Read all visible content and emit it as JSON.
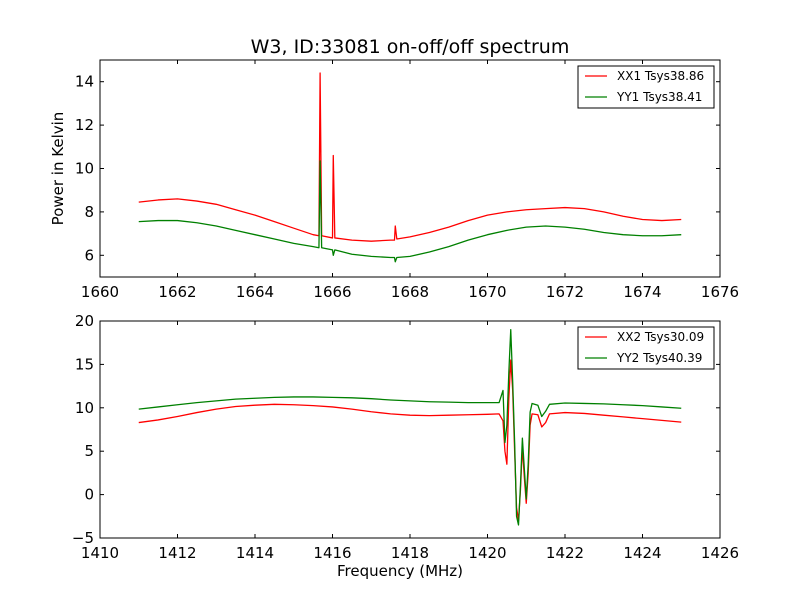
{
  "figure": {
    "title": "W3, ID:33081 on-off/off spectrum"
  },
  "chart_data": [
    {
      "type": "line",
      "title": "W3, ID:33081 on-off/off spectrum",
      "xlabel": "",
      "ylabel": "Power in Kelvin",
      "xlim": [
        1660,
        1676
      ],
      "ylim": [
        5,
        15
      ],
      "xticks": [
        1660,
        1662,
        1664,
        1666,
        1668,
        1670,
        1672,
        1674,
        1676
      ],
      "yticks": [
        6,
        8,
        10,
        12,
        14
      ],
      "grid": false,
      "legend_position": "top-right",
      "series": [
        {
          "name": "XX1 Tsys38.86",
          "color": "#ff0000",
          "points": [
            [
              1661.0,
              8.45
            ],
            [
              1661.5,
              8.55
            ],
            [
              1662.0,
              8.6
            ],
            [
              1662.5,
              8.5
            ],
            [
              1663.0,
              8.35
            ],
            [
              1663.5,
              8.1
            ],
            [
              1664.0,
              7.85
            ],
            [
              1664.5,
              7.55
            ],
            [
              1665.0,
              7.25
            ],
            [
              1665.5,
              6.95
            ],
            [
              1665.65,
              6.9
            ],
            [
              1665.68,
              14.4
            ],
            [
              1665.72,
              6.9
            ],
            [
              1666.0,
              6.8
            ],
            [
              1666.02,
              10.6
            ],
            [
              1666.06,
              6.8
            ],
            [
              1666.5,
              6.7
            ],
            [
              1667.0,
              6.65
            ],
            [
              1667.5,
              6.7
            ],
            [
              1667.6,
              6.7
            ],
            [
              1667.62,
              7.35
            ],
            [
              1667.66,
              6.75
            ],
            [
              1668.0,
              6.85
            ],
            [
              1668.5,
              7.05
            ],
            [
              1669.0,
              7.3
            ],
            [
              1669.5,
              7.6
            ],
            [
              1670.0,
              7.85
            ],
            [
              1670.5,
              8.0
            ],
            [
              1671.0,
              8.1
            ],
            [
              1671.5,
              8.15
            ],
            [
              1672.0,
              8.2
            ],
            [
              1672.5,
              8.15
            ],
            [
              1673.0,
              8.0
            ],
            [
              1673.5,
              7.8
            ],
            [
              1674.0,
              7.65
            ],
            [
              1674.5,
              7.6
            ],
            [
              1675.0,
              7.65
            ]
          ]
        },
        {
          "name": "YY1 Tsys38.41",
          "color": "#008000",
          "points": [
            [
              1661.0,
              7.55
            ],
            [
              1661.5,
              7.6
            ],
            [
              1662.0,
              7.6
            ],
            [
              1662.5,
              7.5
            ],
            [
              1663.0,
              7.35
            ],
            [
              1663.5,
              7.15
            ],
            [
              1664.0,
              6.95
            ],
            [
              1664.5,
              6.75
            ],
            [
              1665.0,
              6.55
            ],
            [
              1665.5,
              6.4
            ],
            [
              1665.65,
              6.35
            ],
            [
              1665.68,
              10.35
            ],
            [
              1665.72,
              6.35
            ],
            [
              1666.0,
              6.25
            ],
            [
              1666.02,
              6.0
            ],
            [
              1666.06,
              6.25
            ],
            [
              1666.5,
              6.05
            ],
            [
              1667.0,
              5.95
            ],
            [
              1667.5,
              5.9
            ],
            [
              1667.6,
              5.9
            ],
            [
              1667.62,
              5.7
            ],
            [
              1667.66,
              5.9
            ],
            [
              1668.0,
              5.95
            ],
            [
              1668.5,
              6.15
            ],
            [
              1669.0,
              6.4
            ],
            [
              1669.5,
              6.7
            ],
            [
              1670.0,
              6.95
            ],
            [
              1670.5,
              7.15
            ],
            [
              1671.0,
              7.3
            ],
            [
              1671.5,
              7.35
            ],
            [
              1672.0,
              7.3
            ],
            [
              1672.5,
              7.2
            ],
            [
              1673.0,
              7.05
            ],
            [
              1673.5,
              6.95
            ],
            [
              1674.0,
              6.9
            ],
            [
              1674.5,
              6.9
            ],
            [
              1675.0,
              6.95
            ]
          ]
        }
      ]
    },
    {
      "type": "line",
      "title": "",
      "xlabel": "Frequency (MHz)",
      "ylabel": "",
      "xlim": [
        1410,
        1426
      ],
      "ylim": [
        -5,
        20
      ],
      "xticks": [
        1410,
        1412,
        1414,
        1416,
        1418,
        1420,
        1422,
        1424,
        1426
      ],
      "yticks": [
        -5,
        0,
        5,
        10,
        15,
        20
      ],
      "grid": false,
      "legend_position": "top-right",
      "series": [
        {
          "name": "XX2 Tsys30.09",
          "color": "#ff0000",
          "points": [
            [
              1411.0,
              8.3
            ],
            [
              1411.5,
              8.6
            ],
            [
              1412.0,
              9.0
            ],
            [
              1412.5,
              9.45
            ],
            [
              1413.0,
              9.85
            ],
            [
              1413.5,
              10.15
            ],
            [
              1414.0,
              10.3
            ],
            [
              1414.5,
              10.4
            ],
            [
              1415.0,
              10.35
            ],
            [
              1415.5,
              10.25
            ],
            [
              1416.0,
              10.1
            ],
            [
              1416.5,
              9.85
            ],
            [
              1417.0,
              9.55
            ],
            [
              1417.5,
              9.3
            ],
            [
              1418.0,
              9.15
            ],
            [
              1418.5,
              9.1
            ],
            [
              1419.0,
              9.15
            ],
            [
              1419.5,
              9.2
            ],
            [
              1420.0,
              9.25
            ],
            [
              1420.3,
              9.3
            ],
            [
              1420.4,
              8.5
            ],
            [
              1420.45,
              5.0
            ],
            [
              1420.5,
              3.5
            ],
            [
              1420.55,
              11.0
            ],
            [
              1420.6,
              15.5
            ],
            [
              1420.65,
              12.0
            ],
            [
              1420.7,
              5.0
            ],
            [
              1420.75,
              -1.5
            ],
            [
              1420.8,
              -3.0
            ],
            [
              1420.85,
              0.5
            ],
            [
              1420.9,
              5.5
            ],
            [
              1420.95,
              2.0
            ],
            [
              1421.0,
              -1.0
            ],
            [
              1421.05,
              2.5
            ],
            [
              1421.1,
              8.0
            ],
            [
              1421.15,
              9.3
            ],
            [
              1421.3,
              9.2
            ],
            [
              1421.4,
              7.8
            ],
            [
              1421.5,
              8.3
            ],
            [
              1421.6,
              9.3
            ],
            [
              1422.0,
              9.45
            ],
            [
              1422.5,
              9.35
            ],
            [
              1423.0,
              9.15
            ],
            [
              1423.5,
              8.95
            ],
            [
              1424.0,
              8.75
            ],
            [
              1424.5,
              8.55
            ],
            [
              1425.0,
              8.35
            ]
          ]
        },
        {
          "name": "YY2 Tsys40.39",
          "color": "#008000",
          "points": [
            [
              1411.0,
              9.85
            ],
            [
              1411.5,
              10.1
            ],
            [
              1412.0,
              10.35
            ],
            [
              1412.5,
              10.6
            ],
            [
              1413.0,
              10.8
            ],
            [
              1413.5,
              11.0
            ],
            [
              1414.0,
              11.1
            ],
            [
              1414.5,
              11.2
            ],
            [
              1415.0,
              11.25
            ],
            [
              1415.5,
              11.25
            ],
            [
              1416.0,
              11.2
            ],
            [
              1416.5,
              11.15
            ],
            [
              1417.0,
              11.05
            ],
            [
              1417.5,
              10.9
            ],
            [
              1418.0,
              10.8
            ],
            [
              1418.5,
              10.7
            ],
            [
              1419.0,
              10.65
            ],
            [
              1419.5,
              10.6
            ],
            [
              1420.0,
              10.6
            ],
            [
              1420.3,
              10.6
            ],
            [
              1420.4,
              12.0
            ],
            [
              1420.45,
              6.0
            ],
            [
              1420.5,
              8.0
            ],
            [
              1420.55,
              14.0
            ],
            [
              1420.6,
              19.0
            ],
            [
              1420.65,
              13.0
            ],
            [
              1420.7,
              6.0
            ],
            [
              1420.75,
              -2.5
            ],
            [
              1420.8,
              -3.5
            ],
            [
              1420.85,
              1.0
            ],
            [
              1420.9,
              6.5
            ],
            [
              1420.95,
              3.0
            ],
            [
              1421.0,
              -0.5
            ],
            [
              1421.05,
              3.5
            ],
            [
              1421.1,
              9.5
            ],
            [
              1421.15,
              10.5
            ],
            [
              1421.3,
              10.3
            ],
            [
              1421.4,
              9.0
            ],
            [
              1421.5,
              9.6
            ],
            [
              1421.6,
              10.4
            ],
            [
              1422.0,
              10.55
            ],
            [
              1422.5,
              10.5
            ],
            [
              1423.0,
              10.45
            ],
            [
              1423.5,
              10.35
            ],
            [
              1424.0,
              10.25
            ],
            [
              1424.5,
              10.1
            ],
            [
              1425.0,
              9.95
            ]
          ]
        }
      ]
    }
  ]
}
